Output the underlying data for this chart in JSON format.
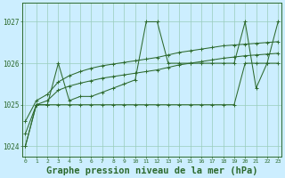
{
  "background_color": "#cceeff",
  "grid_color": "#99ccbb",
  "line_color": "#2d6a2d",
  "x_labels": [
    "0",
    "1",
    "2",
    "3",
    "4",
    "5",
    "6",
    "7",
    "8",
    "9",
    "10",
    "11",
    "12",
    "13",
    "14",
    "15",
    "16",
    "17",
    "18",
    "19",
    "20",
    "21",
    "22",
    "23"
  ],
  "series": {
    "line_spiky": [
      1024.0,
      1025.0,
      1025.0,
      1026.0,
      1025.1,
      1025.2,
      1025.2,
      1025.3,
      1025.4,
      1025.5,
      1025.6,
      1027.0,
      1027.0,
      1026.0,
      1026.0,
      1026.0,
      1026.0,
      1026.0,
      1026.0,
      1026.0,
      1027.0,
      1025.4,
      1026.0,
      1027.0
    ],
    "line_upper": [
      1024.6,
      1025.1,
      1025.25,
      1025.55,
      1025.7,
      1025.8,
      1025.88,
      1025.94,
      1025.98,
      1026.02,
      1026.06,
      1026.1,
      1026.14,
      1026.2,
      1026.26,
      1026.3,
      1026.34,
      1026.38,
      1026.42,
      1026.44,
      1026.46,
      1026.48,
      1026.5,
      1026.52
    ],
    "line_mid": [
      1024.3,
      1025.0,
      1025.1,
      1025.35,
      1025.45,
      1025.52,
      1025.58,
      1025.64,
      1025.68,
      1025.72,
      1025.76,
      1025.8,
      1025.84,
      1025.9,
      1025.96,
      1026.0,
      1026.04,
      1026.08,
      1026.12,
      1026.15,
      1026.18,
      1026.2,
      1026.22,
      1026.24
    ],
    "line_flat": [
      1024.0,
      1025.0,
      1025.0,
      1025.0,
      1025.0,
      1025.0,
      1025.0,
      1025.0,
      1025.0,
      1025.0,
      1025.0,
      1025.0,
      1025.0,
      1025.0,
      1025.0,
      1025.0,
      1025.0,
      1025.0,
      1025.0,
      1025.0,
      1026.0,
      1026.0,
      1026.0,
      1026.0
    ]
  },
  "yticks": [
    1024,
    1025,
    1026,
    1027
  ],
  "ylim": [
    1023.75,
    1027.45
  ],
  "xlim": [
    -0.3,
    23.3
  ],
  "title": "Graphe pression niveau de la mer (hPa)",
  "title_fontsize": 7.5,
  "figsize": [
    3.2,
    2.0
  ],
  "dpi": 100
}
